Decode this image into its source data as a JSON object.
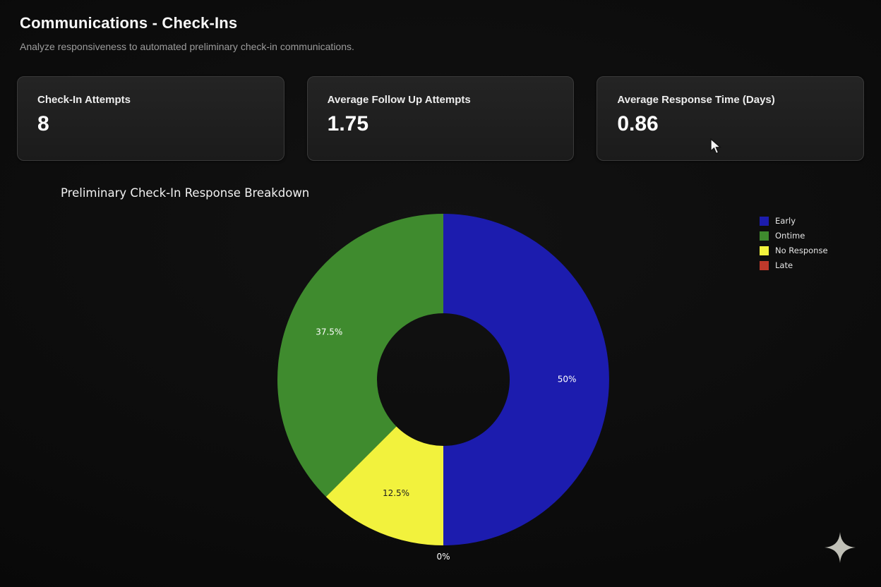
{
  "page": {
    "title": "Communications - Check-Ins",
    "subtitle": "Analyze responsiveness to automated preliminary check-in communications."
  },
  "stats": [
    {
      "label": "Check-In Attempts",
      "value": "8"
    },
    {
      "label": "Average Follow Up Attempts",
      "value": "1.75"
    },
    {
      "label": "Average Response Time (Days)",
      "value": "0.86"
    }
  ],
  "chart_data": {
    "type": "pie",
    "donut": true,
    "title": "Preliminary Check-In Response Breakdown",
    "categories": [
      "Early",
      "Ontime",
      "No Response",
      "Late"
    ],
    "values": [
      50,
      37.5,
      12.5,
      0
    ],
    "percent_labels": [
      "50%",
      "37.5%",
      "12.5%",
      "0%"
    ],
    "colors": [
      "#1c1cae",
      "#3f8b2e",
      "#f2f23d",
      "#c0392b"
    ],
    "label_colors": [
      "#ffffff",
      "#ffffff",
      "#1d1d1d",
      "#ffffff"
    ],
    "start_angle_deg": 180,
    "direction": "counterclockwise",
    "legend_position": "upper right",
    "hole_ratio": 0.4
  }
}
